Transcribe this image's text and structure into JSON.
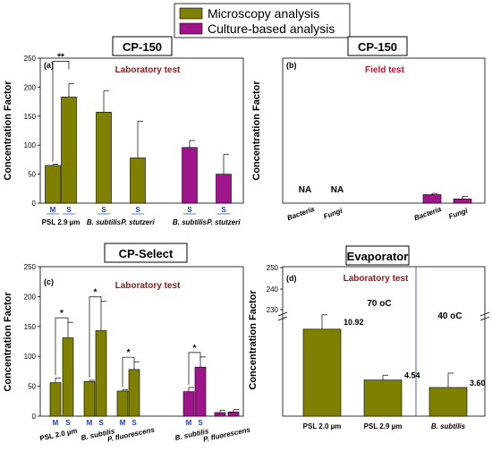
{
  "legend": {
    "items": [
      {
        "label": "Microscopy analysis",
        "color": "#7f7f00"
      },
      {
        "label": "Culture-based analysis",
        "color": "#a0148c"
      }
    ]
  },
  "colors": {
    "microscopy": "#7f7f00",
    "culture": "#a0148c",
    "title_red": "#8b1a1a",
    "ms_label": "#1f3fbf",
    "divider": "#2b3a8c"
  },
  "chart_data": [
    {
      "panel": "(a)",
      "type": "bar",
      "box_title": "CP-150",
      "title": "Laboratory test",
      "ylabel": "Concentration Factor",
      "ylim": [
        0,
        250
      ],
      "yticks": [
        0,
        50,
        100,
        150,
        200,
        250
      ],
      "bars": [
        {
          "series": "Microscopy analysis",
          "value": 65,
          "err": 2,
          "sub": "M"
        },
        {
          "series": "Microscopy analysis",
          "value": 183,
          "err": 23,
          "sub": "S"
        },
        {
          "series": "Microscopy analysis",
          "value": 157,
          "err": 37,
          "sub": "S"
        },
        {
          "series": "Microscopy analysis",
          "value": 78,
          "err": 63,
          "sub": "S"
        },
        {
          "series": "Culture-based analysis",
          "value": 96,
          "err": 12,
          "sub": "S"
        },
        {
          "series": "Culture-based analysis",
          "value": 50,
          "err": 34,
          "sub": "S"
        }
      ],
      "group_labels": [
        "PSL 2.9 µm",
        "B. subtilis",
        "P. stutzeri",
        "B. subtilis",
        "P. stutzeri"
      ],
      "significance": [
        "**"
      ]
    },
    {
      "panel": "(b)",
      "type": "bar",
      "box_title": "CP-150",
      "title": "Field test",
      "ylabel": "Concentration Factor",
      "bars": [
        {
          "series": "Microscopy analysis",
          "label": "Bacteria",
          "value": null,
          "text": "NA"
        },
        {
          "series": "Microscopy analysis",
          "label": "Fungi",
          "value": null,
          "text": "NA"
        },
        {
          "series": "Culture-based analysis",
          "label": "Bacteria",
          "value": 14,
          "err": 2
        },
        {
          "series": "Culture-based analysis",
          "label": "Fungi",
          "value": 7,
          "err": 4
        }
      ]
    },
    {
      "panel": "(c)",
      "type": "bar",
      "box_title": "CP-Select",
      "title": "Laboratory test",
      "ylabel": "Concentration Factor",
      "ylim": [
        0,
        250
      ],
      "yticks": [
        0,
        50,
        100,
        150,
        200,
        250
      ],
      "bars": [
        {
          "series": "Microscopy analysis",
          "value": 56,
          "err": 8,
          "sub": "M"
        },
        {
          "series": "Microscopy analysis",
          "value": 131,
          "err": 26,
          "sub": "S"
        },
        {
          "series": "Microscopy analysis",
          "value": 58,
          "err": 2,
          "sub": "M"
        },
        {
          "series": "Microscopy analysis",
          "value": 143,
          "err": 49,
          "sub": "S"
        },
        {
          "series": "Microscopy analysis",
          "value": 42,
          "err": 2,
          "sub": "M"
        },
        {
          "series": "Microscopy analysis",
          "value": 78,
          "err": 13,
          "sub": "S"
        },
        {
          "series": "Culture-based analysis",
          "value": 41,
          "err": 7,
          "sub": "M"
        },
        {
          "series": "Culture-based analysis",
          "value": 82,
          "err": 17,
          "sub": "S"
        },
        {
          "series": "Culture-based analysis",
          "value": 6,
          "err": 4,
          "sub": ""
        },
        {
          "series": "Culture-based analysis",
          "value": 7,
          "err": 4,
          "sub": ""
        }
      ],
      "group_labels": [
        "PSL 2.0 µm",
        "B. subtilis",
        "P. fluorescens",
        "B. subtilis",
        "P. fluorescens"
      ],
      "significance": [
        "*",
        "*",
        "*",
        "*"
      ]
    },
    {
      "panel": "(d)",
      "type": "bar",
      "box_title": "Evaporator",
      "title": "Laboratory test",
      "ylabel": "Concentration Factor",
      "yticks_upper": [
        230,
        240,
        250
      ],
      "bars": [
        {
          "series": "Microscopy analysis",
          "label": "PSL 2.0 µm",
          "value": 10.92,
          "err": 1.8,
          "text": "10.92"
        },
        {
          "series": "Microscopy analysis",
          "label": "PSL 2.9 µm",
          "value": 4.54,
          "err": 0.6,
          "text": "4.54"
        },
        {
          "series": "Microscopy analysis",
          "label": "B. subtilis",
          "value": 3.6,
          "err": 1.8,
          "text": "3.60"
        }
      ],
      "annotations": [
        "70 oC",
        "40 oC"
      ]
    }
  ]
}
